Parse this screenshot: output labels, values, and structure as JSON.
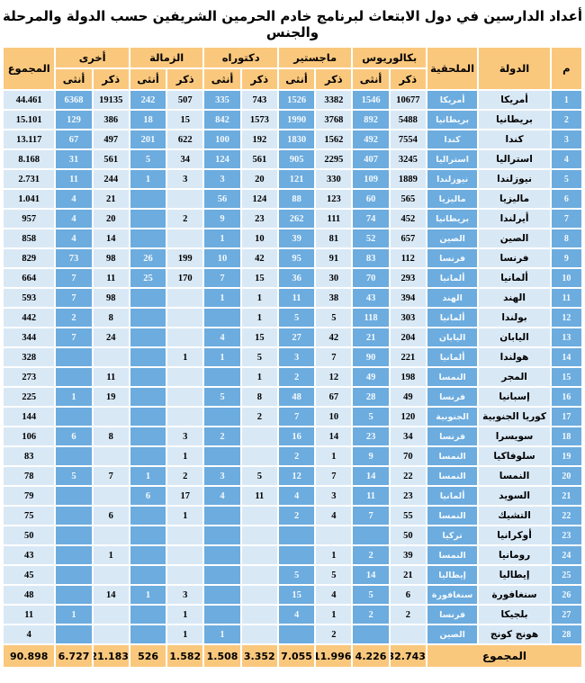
{
  "title": "أعداد الدارسين في دول الابتعاث لبرنامج خادم الحرمين الشريفين حسب الدولة والمرحلة والجنس",
  "colors": {
    "header_bg": "#FAC87D",
    "female_cell_bg": "#6CACDF",
    "male_cell_bg": "#D9E8F5",
    "grid": "#FFFFFF"
  },
  "table": {
    "headers": {
      "num": "م",
      "country": "الدولة",
      "attache": "الملحقية",
      "groups": [
        {
          "label": "بكالوريوس"
        },
        {
          "label": "ماجستير"
        },
        {
          "label": "دكتوراه"
        },
        {
          "label": "الزمالة"
        },
        {
          "label": "أخرى"
        }
      ],
      "male": "ذكر",
      "female": "أنثى",
      "total": "المجموع"
    },
    "rows": [
      {
        "n": "1",
        "country": "أمريكا",
        "attache": "أمريكا",
        "cells": [
          "10677",
          "1546",
          "3382",
          "1526",
          "743",
          "335",
          "507",
          "242",
          "19135",
          "6368"
        ],
        "total": "44.461"
      },
      {
        "n": "2",
        "country": "بريطانيا",
        "attache": "بريطانيا",
        "cells": [
          "5488",
          "892",
          "3768",
          "1990",
          "1573",
          "842",
          "15",
          "18",
          "386",
          "129"
        ],
        "total": "15.101"
      },
      {
        "n": "3",
        "country": "كندا",
        "attache": "كندا",
        "cells": [
          "7554",
          "492",
          "1562",
          "1830",
          "192",
          "100",
          "622",
          "201",
          "497",
          "67"
        ],
        "total": "13.117"
      },
      {
        "n": "4",
        "country": "استراليا",
        "attache": "استراليا",
        "cells": [
          "3245",
          "407",
          "2295",
          "905",
          "561",
          "124",
          "34",
          "5",
          "561",
          "31"
        ],
        "total": "8.168"
      },
      {
        "n": "5",
        "country": "نيوزلندا",
        "attache": "نيوزلندا",
        "cells": [
          "1889",
          "109",
          "330",
          "121",
          "20",
          "3",
          "3",
          "1",
          "244",
          "11"
        ],
        "total": "2.731"
      },
      {
        "n": "6",
        "country": "ماليزيا",
        "attache": "ماليزيا",
        "cells": [
          "565",
          "60",
          "123",
          "88",
          "124",
          "56",
          "",
          "",
          "21",
          "4"
        ],
        "total": "1.041"
      },
      {
        "n": "7",
        "country": "أيرلندا",
        "attache": "بريطانيا",
        "cells": [
          "452",
          "74",
          "111",
          "262",
          "23",
          "9",
          "2",
          "",
          "20",
          "4"
        ],
        "total": "957"
      },
      {
        "n": "8",
        "country": "الصين",
        "attache": "الصين",
        "cells": [
          "657",
          "52",
          "81",
          "39",
          "10",
          "1",
          "",
          "",
          "14",
          "4"
        ],
        "total": "858"
      },
      {
        "n": "9",
        "country": "فرنسا",
        "attache": "فرنسا",
        "cells": [
          "112",
          "83",
          "91",
          "95",
          "42",
          "10",
          "199",
          "26",
          "98",
          "73"
        ],
        "total": "829"
      },
      {
        "n": "10",
        "country": "ألمانيا",
        "attache": "ألمانيا",
        "cells": [
          "293",
          "70",
          "30",
          "36",
          "15",
          "7",
          "170",
          "25",
          "11",
          "7"
        ],
        "total": "664"
      },
      {
        "n": "11",
        "country": "الهند",
        "attache": "الهند",
        "cells": [
          "394",
          "43",
          "38",
          "11",
          "1",
          "1",
          "",
          "",
          "98",
          "7"
        ],
        "total": "593"
      },
      {
        "n": "12",
        "country": "بولندا",
        "attache": "ألمانيا",
        "cells": [
          "303",
          "118",
          "5",
          "5",
          "1",
          "",
          "",
          "",
          "8",
          "2"
        ],
        "total": "442"
      },
      {
        "n": "13",
        "country": "اليابان",
        "attache": "اليابان",
        "cells": [
          "204",
          "21",
          "42",
          "27",
          "15",
          "4",
          "",
          "",
          "24",
          "7"
        ],
        "total": "344"
      },
      {
        "n": "14",
        "country": "هولندا",
        "attache": "ألمانيا",
        "cells": [
          "221",
          "90",
          "7",
          "3",
          "5",
          "1",
          "1",
          "",
          "",
          ""
        ],
        "total": "328"
      },
      {
        "n": "15",
        "country": "المجر",
        "attache": "النمسا",
        "cells": [
          "198",
          "49",
          "12",
          "2",
          "1",
          "",
          "",
          "",
          "11",
          ""
        ],
        "total": "273"
      },
      {
        "n": "16",
        "country": "إسبانيا",
        "attache": "فرنسا",
        "cells": [
          "49",
          "28",
          "67",
          "48",
          "8",
          "5",
          "",
          "",
          "19",
          "1"
        ],
        "total": "225"
      },
      {
        "n": "17",
        "country": "كوريا الجنوبية",
        "attache": "الجنوبية",
        "cells": [
          "120",
          "5",
          "10",
          "7",
          "2",
          "",
          "",
          "",
          "",
          ""
        ],
        "total": "144"
      },
      {
        "n": "18",
        "country": "سويسرا",
        "attache": "فرنسا",
        "cells": [
          "34",
          "23",
          "14",
          "16",
          "",
          "2",
          "3",
          "",
          "8",
          "6"
        ],
        "total": "106"
      },
      {
        "n": "19",
        "country": "سلوفاكيا",
        "attache": "النمسا",
        "cells": [
          "70",
          "9",
          "1",
          "2",
          "",
          "",
          "1",
          "",
          "",
          ""
        ],
        "total": "83"
      },
      {
        "n": "20",
        "country": "النمسا",
        "attache": "النمسا",
        "cells": [
          "22",
          "14",
          "7",
          "12",
          "5",
          "3",
          "2",
          "1",
          "7",
          "5"
        ],
        "total": "78"
      },
      {
        "n": "21",
        "country": "السويد",
        "attache": "ألمانيا",
        "cells": [
          "23",
          "11",
          "3",
          "4",
          "11",
          "4",
          "17",
          "6",
          "",
          ""
        ],
        "total": "79"
      },
      {
        "n": "22",
        "country": "التشيك",
        "attache": "النمسا",
        "cells": [
          "55",
          "7",
          "4",
          "2",
          "",
          "",
          "1",
          "",
          "6",
          ""
        ],
        "total": "75"
      },
      {
        "n": "23",
        "country": "أوكرانيا",
        "attache": "تركيا",
        "cells": [
          "50",
          "",
          "",
          "",
          "",
          "",
          "",
          "",
          "",
          ""
        ],
        "total": "50"
      },
      {
        "n": "24",
        "country": "رومانيا",
        "attache": "النمسا",
        "cells": [
          "39",
          "2",
          "1",
          "",
          "",
          "",
          "",
          "",
          "1",
          ""
        ],
        "total": "43"
      },
      {
        "n": "25",
        "country": "إيطاليا",
        "attache": "إيطاليا",
        "cells": [
          "21",
          "14",
          "5",
          "5",
          "",
          "",
          "",
          "",
          "",
          ""
        ],
        "total": "45"
      },
      {
        "n": "26",
        "country": "سنغافورة",
        "attache": "سنغافورة",
        "cells": [
          "6",
          "5",
          "4",
          "15",
          "",
          "",
          "3",
          "1",
          "14",
          ""
        ],
        "total": "48"
      },
      {
        "n": "27",
        "country": "بلجيكا",
        "attache": "فرنسا",
        "cells": [
          "2",
          "2",
          "1",
          "4",
          "",
          "",
          "1",
          "",
          "",
          "1"
        ],
        "total": "11"
      },
      {
        "n": "28",
        "country": "هونج كونج",
        "attache": "الصين",
        "cells": [
          "",
          "",
          "2",
          "",
          "",
          "1",
          "1",
          "",
          "",
          ""
        ],
        "total": "4"
      }
    ],
    "footer": {
      "label": "المجموع",
      "values": [
        "32.743",
        "4.226",
        "11.996",
        "7.055",
        "3.352",
        "1.508",
        "1.582",
        "526",
        "21.183",
        "6.727"
      ],
      "grand_total": "90.898"
    }
  }
}
